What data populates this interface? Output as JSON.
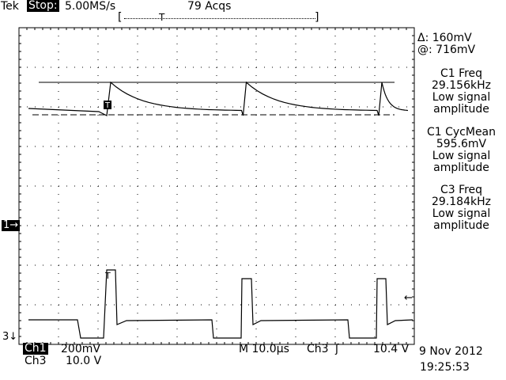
{
  "header": {
    "brand": "Tek",
    "run_state": "Stop:",
    "sample_rate": "5.00MS/s",
    "acquisitions": "79 Acqs",
    "record_bracket_left": "[",
    "record_bracket_right": "]",
    "trigger_position_glyph": "T"
  },
  "cursor_readout": {
    "delta": "Δ: 160mV",
    "at": "@: 716mV"
  },
  "measurements": [
    {
      "title": "C1 Freq",
      "value": "29.156kHz",
      "note1": "Low signal",
      "note2": "amplitude"
    },
    {
      "title": "C1 CycMean",
      "value": "595.6mV",
      "note1": "Low signal",
      "note2": "amplitude"
    },
    {
      "title": "C3 Freq",
      "value": "29.184kHz",
      "note1": "Low signal",
      "note2": "amplitude"
    }
  ],
  "markers": {
    "ch1": "1→",
    "ch3": "3↓",
    "trigger_level": "←",
    "trigger_on_trace_1": "T",
    "trigger_on_trace_3": "T"
  },
  "footer": {
    "ch1_label": "Ch1",
    "ch1_scale": "200mV",
    "ch3_label": "Ch3",
    "ch3_scale": "10.0 V",
    "timebase": "M 10.0µs",
    "trigger_source": "Ch3",
    "trigger_slope_glyph": "ʃ",
    "trigger_level": "10.4 V",
    "date": "9 Nov 2012",
    "time": "19:25:53"
  },
  "colors": {
    "background": "#ffffff",
    "trace": "#000000",
    "graticule": "#000000"
  }
}
